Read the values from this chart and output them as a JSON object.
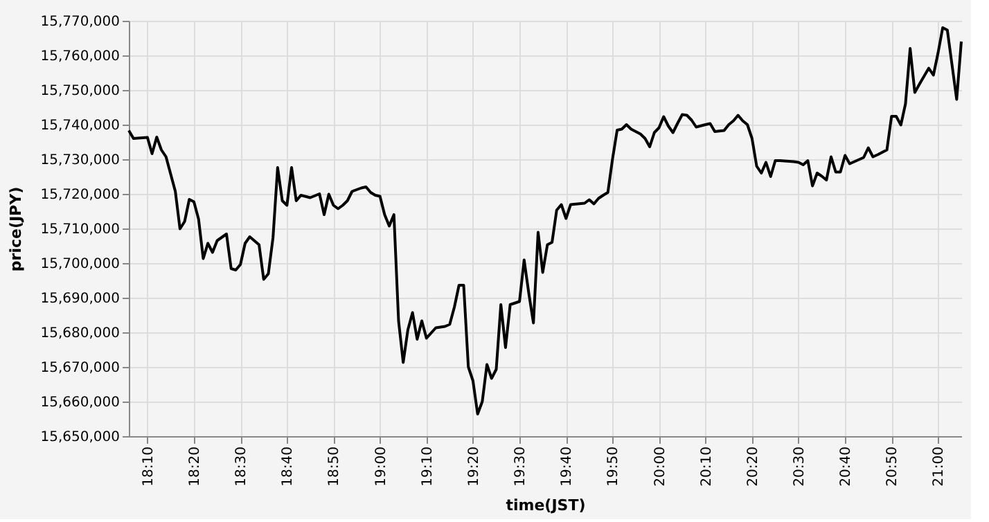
{
  "chart_data": {
    "type": "line",
    "xlabel": "time(JST)",
    "ylabel": "price(JPY)",
    "xlim": [
      18.1,
      21.0833
    ],
    "xticks": [
      {
        "value": 18.1667,
        "label": "18:10"
      },
      {
        "value": 18.3333,
        "label": "18:20"
      },
      {
        "value": 18.5,
        "label": "18:30"
      },
      {
        "value": 18.6667,
        "label": "18:40"
      },
      {
        "value": 18.8333,
        "label": "18:50"
      },
      {
        "value": 19.0,
        "label": "19:00"
      },
      {
        "value": 19.1667,
        "label": "19:10"
      },
      {
        "value": 19.3333,
        "label": "19:20"
      },
      {
        "value": 19.5,
        "label": "19:30"
      },
      {
        "value": 19.6667,
        "label": "19:40"
      },
      {
        "value": 19.8333,
        "label": "19:50"
      },
      {
        "value": 20.0,
        "label": "20:00"
      },
      {
        "value": 20.1667,
        "label": "20:10"
      },
      {
        "value": 20.3333,
        "label": "20:20"
      },
      {
        "value": 20.5,
        "label": "20:30"
      },
      {
        "value": 20.6667,
        "label": "20:40"
      },
      {
        "value": 20.8333,
        "label": "20:50"
      },
      {
        "value": 21.0,
        "label": "21:00"
      }
    ],
    "ylim": [
      15650000,
      15770000
    ],
    "yticks": [
      {
        "value": 15650000,
        "label": "15,650,000"
      },
      {
        "value": 15660000,
        "label": "15,660,000"
      },
      {
        "value": 15670000,
        "label": "15,670,000"
      },
      {
        "value": 15680000,
        "label": "15,680,000"
      },
      {
        "value": 15690000,
        "label": "15,690,000"
      },
      {
        "value": 15700000,
        "label": "15,700,000"
      },
      {
        "value": 15710000,
        "label": "15,710,000"
      },
      {
        "value": 15720000,
        "label": "15,720,000"
      },
      {
        "value": 15730000,
        "label": "15,730,000"
      },
      {
        "value": 15740000,
        "label": "15,740,000"
      },
      {
        "value": 15750000,
        "label": "15,750,000"
      },
      {
        "value": 15760000,
        "label": "15,760,000"
      },
      {
        "value": 15770000,
        "label": "15,770,000"
      }
    ],
    "grid": true,
    "marker": "none",
    "line_style": "solid",
    "series": [
      {
        "color": "#000000",
        "x": [
          18.1,
          18.1167,
          18.1667,
          18.1833,
          18.2,
          18.2167,
          18.2333,
          18.2667,
          18.2833,
          18.3,
          18.3167,
          18.3333,
          18.35,
          18.3667,
          18.3833,
          18.4,
          18.4167,
          18.45,
          18.4667,
          18.4833,
          18.5,
          18.5167,
          18.5333,
          18.5667,
          18.5833,
          18.6,
          18.6167,
          18.6333,
          18.65,
          18.6667,
          18.6833,
          18.7,
          18.7167,
          18.75,
          18.7833,
          18.8,
          18.8167,
          18.8333,
          18.85,
          18.8667,
          18.8833,
          18.9,
          18.9333,
          18.95,
          18.9667,
          18.9833,
          19.0,
          19.0167,
          19.0333,
          19.05,
          19.0667,
          19.0833,
          19.1,
          19.1167,
          19.1333,
          19.15,
          19.1667,
          19.2,
          19.2333,
          19.25,
          19.2667,
          19.2833,
          19.3,
          19.3167,
          19.3333,
          19.35,
          19.3667,
          19.3833,
          19.4,
          19.4167,
          19.4333,
          19.45,
          19.4667,
          19.5,
          19.5167,
          19.5333,
          19.55,
          19.5667,
          19.5833,
          19.6,
          19.6167,
          19.6333,
          19.65,
          19.6667,
          19.6833,
          19.7333,
          19.75,
          19.7667,
          19.7833,
          19.8,
          19.8167,
          19.8333,
          19.85,
          19.8667,
          19.8833,
          19.9,
          19.9333,
          19.95,
          19.9667,
          19.9833,
          20.0,
          20.0167,
          20.0333,
          20.05,
          20.0667,
          20.0833,
          20.1,
          20.1167,
          20.1333,
          20.1667,
          20.1833,
          20.2,
          20.2333,
          20.25,
          20.2667,
          20.2833,
          20.3,
          20.3167,
          20.3333,
          20.35,
          20.3667,
          20.3833,
          20.4,
          20.4167,
          20.4333,
          20.4833,
          20.5,
          20.5167,
          20.5333,
          20.55,
          20.5667,
          20.5833,
          20.6,
          20.6167,
          20.6333,
          20.65,
          20.6667,
          20.6833,
          20.7333,
          20.75,
          20.7667,
          20.7833,
          20.8167,
          20.8333,
          20.85,
          20.8667,
          20.8833,
          20.9,
          20.9167,
          20.9333,
          20.9667,
          20.9833,
          21.0,
          21.0167,
          21.0333,
          21.05,
          21.0667,
          21.0833
        ],
        "values": [
          15738300,
          15736000,
          15736300,
          15731600,
          15736400,
          15732700,
          15730700,
          15720700,
          15709900,
          15712000,
          15718400,
          15717700,
          15712700,
          15701300,
          15705700,
          15703100,
          15706500,
          15708400,
          15698400,
          15698000,
          15699600,
          15705700,
          15707600,
          15705300,
          15695300,
          15696900,
          15707300,
          15727600,
          15718000,
          15716700,
          15727600,
          15718000,
          15719600,
          15718900,
          15720000,
          15714000,
          15719900,
          15716700,
          15715700,
          15716700,
          15718000,
          15720700,
          15721700,
          15722000,
          15720400,
          15719600,
          15719300,
          15714000,
          15710700,
          15714000,
          15683300,
          15671300,
          15680700,
          15685700,
          15678000,
          15683300,
          15678300,
          15681300,
          15681700,
          15682300,
          15687300,
          15693600,
          15693600,
          15670000,
          15666000,
          15656400,
          15660000,
          15670700,
          15666700,
          15669300,
          15688000,
          15675600,
          15688000,
          15688900,
          15700900,
          15691300,
          15682700,
          15708900,
          15697300,
          15705300,
          15706000,
          15715300,
          15716900,
          15712900,
          15716900,
          15717300,
          15718300,
          15717100,
          15718700,
          15719600,
          15720400,
          15730000,
          15738400,
          15738700,
          15740000,
          15738700,
          15737300,
          15736000,
          15733600,
          15737700,
          15739100,
          15742300,
          15739600,
          15737700,
          15740400,
          15742900,
          15742700,
          15741300,
          15739300,
          15740000,
          15740300,
          15738000,
          15738300,
          15740000,
          15741100,
          15742700,
          15741100,
          15740000,
          15736000,
          15728000,
          15726000,
          15729100,
          15725000,
          15729600,
          15729600,
          15729300,
          15729100,
          15728400,
          15729600,
          15722300,
          15726000,
          15725100,
          15724000,
          15730700,
          15726300,
          15726300,
          15731100,
          15728700,
          15730500,
          15733300,
          15730700,
          15731300,
          15732700,
          15742400,
          15742400,
          15739900,
          15746000,
          15762000,
          15749300,
          15751700,
          15756300,
          15754300,
          15760700,
          15768000,
          15767300,
          15757300,
          15747300,
          15764000
        ]
      }
    ]
  }
}
